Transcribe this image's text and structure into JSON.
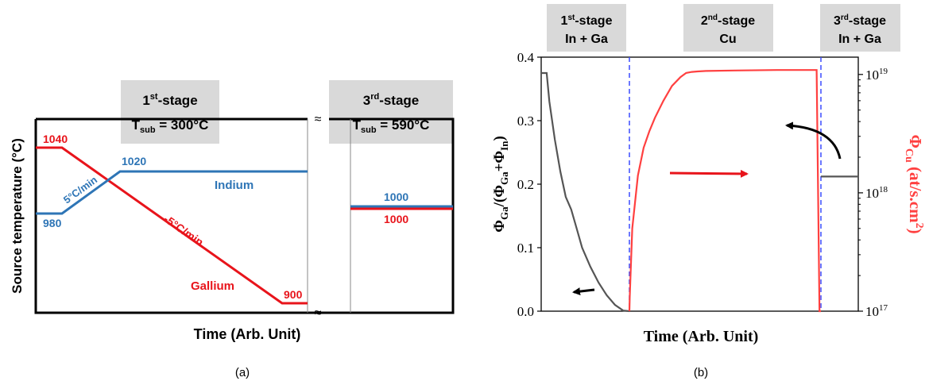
{
  "chart_data": [
    {
      "type": "line",
      "panel_label": "(a)",
      "ylabel": "Source temperature (°C)",
      "xlabel": "Time (Arb. Unit)",
      "stage_boxes": [
        {
          "ordinal": "1",
          "sup": "st",
          "rest": "-stage",
          "line2": "T",
          "sub": "sub",
          "value": " = 300°C"
        },
        {
          "ordinal": "3",
          "sup": "rd",
          "rest": "-stage",
          "line2": "T",
          "sub": "sub",
          "value": " = 590°C"
        }
      ],
      "series": [
        {
          "name": "Indium",
          "color": "#2e75b6",
          "points": [
            [
              0,
              980
            ],
            [
              1,
              980
            ],
            [
              2,
              1020
            ],
            [
              7,
              1020
            ],
            [
              8,
              1000
            ],
            [
              11,
              1000
            ]
          ],
          "point_labels": [
            "980",
            "1020",
            "1000"
          ],
          "rate_label": "5°C/min"
        },
        {
          "name": "Gallium",
          "color": "#e8141b",
          "points": [
            [
              0,
              1040
            ],
            [
              1,
              1040
            ],
            [
              5.5,
              900
            ],
            [
              7,
              900
            ],
            [
              8,
              1000
            ],
            [
              11,
              1000
            ]
          ],
          "point_labels": [
            "1040",
            "900",
            "1000"
          ],
          "rate_label": "-5°C/min"
        }
      ],
      "axis_break": "≈",
      "colors": {
        "indium": "#2e75b6",
        "gallium": "#e8141b",
        "stage_box": "#d9d9d9"
      }
    },
    {
      "type": "line",
      "panel_label": "(b)",
      "xlabel": "Time (Arb. Unit)",
      "y_left": {
        "label_parts": [
          "Φ",
          "Ga",
          "/(Φ",
          "Ga",
          "+Φ",
          "In",
          ")"
        ],
        "lim": [
          0,
          0.4
        ],
        "ticks": [
          "0.0",
          "0.1",
          "0.2",
          "0.3",
          "0.4"
        ]
      },
      "y_right": {
        "label_parts": [
          "Φ",
          "Cu",
          " (at/s.cm",
          "2",
          ")"
        ],
        "scale": "log",
        "lim": [
          1e+17,
          1.4e+19
        ],
        "ticks": [
          {
            "base": "10",
            "exp": "17"
          },
          {
            "base": "10",
            "exp": "18"
          },
          {
            "base": "10",
            "exp": "19"
          }
        ],
        "color": "#ff4040"
      },
      "stage_boxes": [
        {
          "ordinal": "1",
          "sup": "st",
          "rest": "-stage",
          "line2": "In + Ga"
        },
        {
          "ordinal": "2",
          "sup": "nd",
          "rest": "-stage",
          "line2": "Cu"
        },
        {
          "ordinal": "3",
          "sup": "rd",
          "rest": "-stage",
          "line2": "In + Ga"
        }
      ],
      "series": [
        {
          "axis": "left",
          "color": "#555555",
          "x": [
            0.0,
            0.02,
            0.03,
            0.05,
            0.07,
            0.09,
            0.11,
            0.13,
            0.15,
            0.18,
            0.21,
            0.24,
            0.27,
            0.3,
            0.323,
            0.33,
            0.34,
            0.35,
            0.36,
            0.37,
            0.38,
            0.39,
            0.4,
            0.41,
            0.42,
            0.43,
            0.44,
            0.45,
            0.46
          ],
          "y": [
            0.375,
            0.375,
            0.33,
            0.27,
            0.22,
            0.18,
            0.16,
            0.13,
            0.1,
            0.07,
            0.045,
            0.025,
            0.01,
            0.001,
            0.0,
            0.212,
            0.212,
            0.212,
            0.212,
            0.212,
            0.212,
            0.212,
            0.212,
            0.212,
            0.212,
            0.212,
            0.212,
            0.212,
            0.212
          ]
        },
        {
          "axis": "right",
          "color": "#ff4040",
          "x": [
            0.33,
            0.331,
            0.34,
            0.36,
            0.38,
            0.4,
            0.42,
            0.45,
            0.48,
            0.51,
            0.53,
            0.55,
            0.57,
            0.6,
            0.7,
            0.85,
            0.99,
            1.0,
            1.005
          ],
          "y": [
            1e+17,
            1.3e+17,
            5e+17,
            1.4e+18,
            2.4e+18,
            3.3e+18,
            4.3e+18,
            6e+18,
            8e+18,
            9.5e+18,
            1.03e+19,
            1.05e+19,
            1.06e+19,
            1.07e+19,
            1.08e+19,
            1.09e+19,
            1.09e+19,
            1e+17,
            1e+17
          ]
        }
      ],
      "colors": {
        "left_series": "#555555",
        "right_series": "#ff4040",
        "divider": "#3b4bff",
        "stage_box": "#d9d9d9"
      }
    }
  ]
}
